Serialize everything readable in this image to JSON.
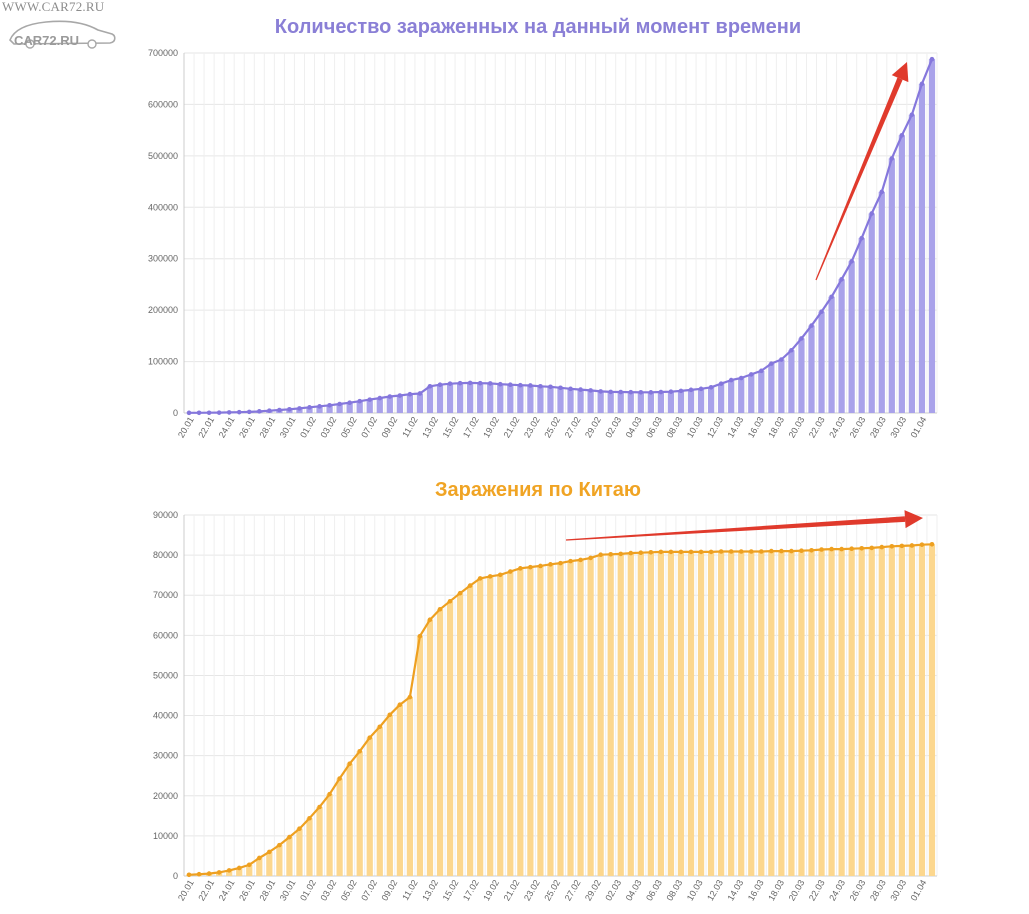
{
  "watermark": {
    "url": "WWW.CAR72.RU",
    "logo": "CAR72.RU"
  },
  "chart_data": [
    {
      "type": "bar",
      "title": "Количество зараженных на данный момент времени",
      "xlabel": "",
      "ylabel": "",
      "ylim": [
        0,
        700000
      ],
      "yticks": [
        "0",
        "100000",
        "200000",
        "300000",
        "400000",
        "500000",
        "600000",
        "700000"
      ],
      "grid": true,
      "colors": {
        "bar": "#a9a2ea",
        "line": "#8577dc",
        "title": "#8a7fd6",
        "arrow": "#e03a2c"
      },
      "x_labels": [
        "20.01",
        "22.01",
        "24.01",
        "26.01",
        "28.01",
        "30.01",
        "01.02",
        "03.02",
        "05.02",
        "07.02",
        "09.02",
        "11.02",
        "13.02",
        "15.02",
        "17.02",
        "19.02",
        "21.02",
        "23.02",
        "25.02",
        "27.02",
        "29.02",
        "02.03",
        "04.03",
        "06.03",
        "08.03",
        "10.03",
        "12.03",
        "14.03",
        "16.03",
        "18.03",
        "20.03",
        "22.03",
        "24.03",
        "26.03",
        "28.03",
        "30.03",
        "01.04"
      ],
      "values": [
        300,
        400,
        500,
        700,
        1100,
        1600,
        2200,
        3200,
        4500,
        5800,
        7200,
        9000,
        11000,
        13000,
        15000,
        17500,
        20000,
        23000,
        26000,
        29000,
        32000,
        34000,
        36500,
        38000,
        52000,
        55000,
        57000,
        58000,
        58500,
        58000,
        57500,
        56000,
        55000,
        54000,
        53500,
        52000,
        51000,
        49000,
        47000,
        45500,
        44000,
        42000,
        41000,
        40800,
        40500,
        40300,
        40200,
        40800,
        41500,
        43000,
        45000,
        47000,
        50000,
        57000,
        64000,
        68000,
        75000,
        82000,
        96000,
        104000,
        122000,
        145000,
        170000,
        197000,
        226000,
        260000,
        295000,
        340000,
        388000,
        430000,
        495000,
        540000,
        580000,
        640000,
        688000
      ],
      "annotations": [
        "red arrow indicating sharp rise"
      ]
    },
    {
      "type": "bar",
      "title": "Заражения по Китаю",
      "xlabel": "",
      "ylabel": "",
      "ylim": [
        0,
        90000
      ],
      "yticks": [
        "0",
        "10000",
        "20000",
        "30000",
        "40000",
        "50000",
        "60000",
        "70000",
        "80000",
        "90000"
      ],
      "grid": true,
      "colors": {
        "bar": "#fcd78e",
        "line": "#eea020",
        "title": "#f0a424",
        "arrow": "#e03a2c"
      },
      "x_labels": [
        "20.01",
        "22.01",
        "24.01",
        "26.01",
        "28.01",
        "30.01",
        "01.02",
        "03.02",
        "05.02",
        "07.02",
        "09.02",
        "11.02",
        "13.02",
        "15.02",
        "17.02",
        "19.02",
        "21.02",
        "23.02",
        "25.02",
        "27.02",
        "29.02",
        "02.03",
        "04.03",
        "06.03",
        "08.03",
        "10.03",
        "12.03",
        "14.03",
        "16.03",
        "18.03",
        "20.03",
        "22.03",
        "24.03",
        "26.03",
        "28.03",
        "30.03",
        "01.04"
      ],
      "values": [
        300,
        450,
        600,
        900,
        1400,
        2000,
        2800,
        4500,
        6000,
        7700,
        9700,
        11800,
        14400,
        17200,
        20400,
        24300,
        28000,
        31100,
        34500,
        37200,
        40200,
        42700,
        44600,
        59800,
        63900,
        66500,
        68500,
        70500,
        72400,
        74200,
        74700,
        75100,
        75900,
        76700,
        77000,
        77300,
        77700,
        78000,
        78500,
        78800,
        79300,
        80100,
        80200,
        80300,
        80500,
        80600,
        80700,
        80800,
        80800,
        80800,
        80800,
        80800,
        80800,
        80900,
        80900,
        80900,
        80900,
        80900,
        81000,
        81000,
        81000,
        81100,
        81200,
        81400,
        81500,
        81500,
        81600,
        81700,
        81800,
        82000,
        82200,
        82300,
        82400,
        82600,
        82700
      ],
      "annotations": [
        "red arrow indicating plateau"
      ]
    }
  ]
}
